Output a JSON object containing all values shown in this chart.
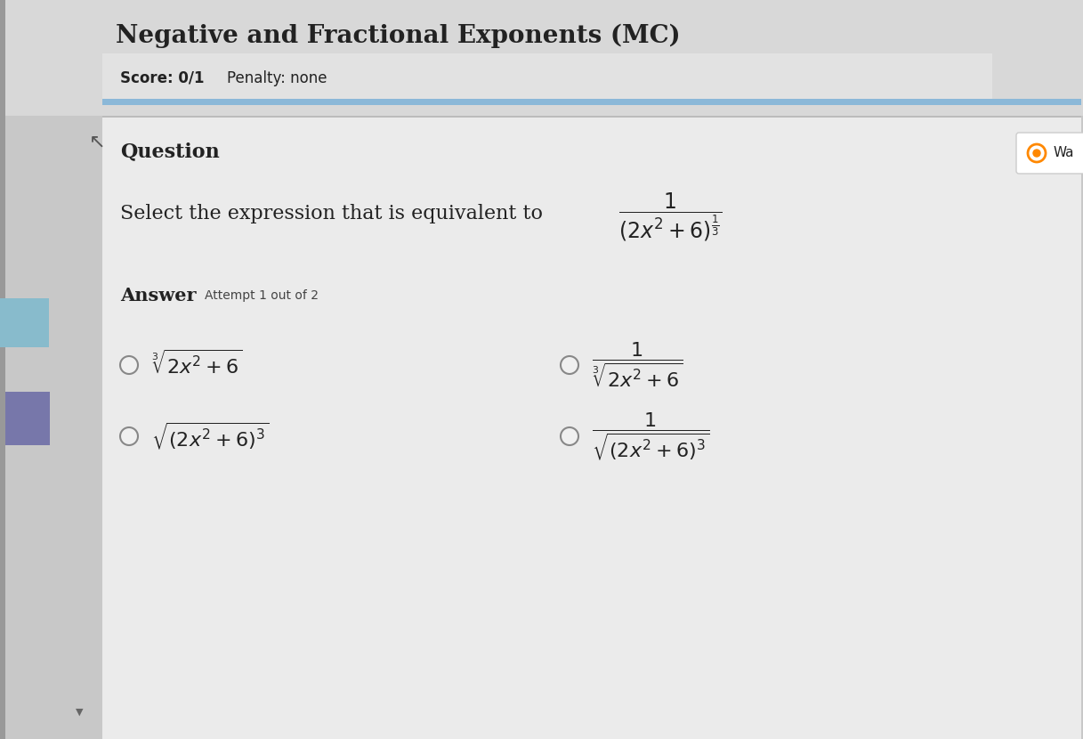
{
  "title": "Negative and Fractional Exponents (MC)",
  "score_label": "Score: 0/1",
  "penalty_label": "Penalty: none",
  "question_label": "Question",
  "watch_label": "Wa",
  "question_text": "Select the expression that is equivalent to",
  "answer_label": "Answer",
  "attempt_label": "Attempt 1 out of 2",
  "main_expression": "$\\dfrac{1}{(2x^2+6)^{\\frac{1}{3}}}$",
  "option_texts": [
    "$\\sqrt[3]{2x^2+6}$",
    "$\\dfrac{1}{\\sqrt[3]{2x^2+6}}$",
    "$\\sqrt{(2x^2+6)^3}$",
    "$\\dfrac{1}{\\sqrt{(2x^2+6)^3}}$"
  ],
  "outer_bg": "#c8c8c8",
  "top_header_bg": "#d8d8d8",
  "score_panel_bg": "#e2e2e2",
  "main_panel_bg": "#e8e8e8",
  "content_area_bg": "#ebebeb",
  "blue_bar_color": "#8bb8d8",
  "left_bar_color": "#aaaaaa",
  "blue_sidebar_color": "#88bbcc",
  "purple_sidebar_color": "#7777aa",
  "red_sidebar_color": "#884444",
  "watch_btn_bg": "#ffffff",
  "watch_btn_border": "#cccccc",
  "watch_circle_color": "#ff8800",
  "text_dark": "#222222",
  "text_medium": "#444444",
  "radio_fill": "#f0f0f0",
  "radio_border": "#888888",
  "title_fontsize": 20,
  "score_fontsize": 12,
  "question_label_fontsize": 16,
  "body_fontsize": 15,
  "answer_fontsize": 15,
  "option_fontsize": 16
}
